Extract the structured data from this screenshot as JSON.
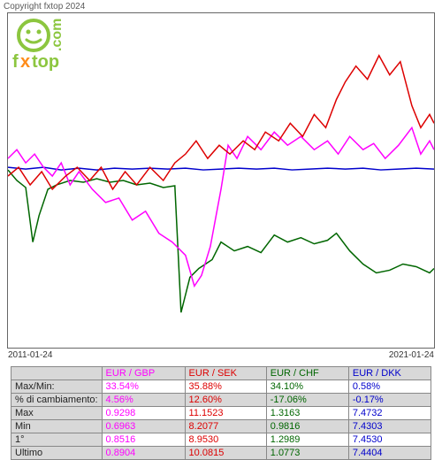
{
  "copyright": "Copyright fxtop 2024",
  "logo": {
    "text_top": "fxtop",
    "text_side": ".com",
    "smiley_color": "#8cc63f",
    "x_color": "#ff8c1a"
  },
  "chart": {
    "type": "line",
    "background_color": "#ffffff",
    "border_color": "#666666",
    "x_start_label": "2011-01-24",
    "x_end_label": "2021-01-24",
    "series": [
      {
        "name": "EUR/GBP",
        "color": "#ff00ff"
      },
      {
        "name": "EUR/SEK",
        "color": "#dd0000"
      },
      {
        "name": "EUR/CHF",
        "color": "#006600"
      },
      {
        "name": "EUR/DKK",
        "color": "#0000cc"
      }
    ]
  },
  "table": {
    "columns": [
      {
        "label": "EUR / GBP",
        "color": "#ff00ff"
      },
      {
        "label": "EUR / SEK",
        "color": "#dd0000"
      },
      {
        "label": "EUR / CHF",
        "color": "#006600"
      },
      {
        "label": "EUR / DKK",
        "color": "#0000cc"
      }
    ],
    "rows": [
      {
        "header": "Max/Min:",
        "cells": [
          "33.54%",
          "35.88%",
          "34.10%",
          "0.58%"
        ],
        "bg": "white"
      },
      {
        "header": "% di cambiamento:",
        "cells": [
          "4.56%",
          "12.60%",
          "-17.06%",
          "-0.17%"
        ],
        "bg": "gray"
      },
      {
        "header": "Max",
        "cells": [
          "0.9298",
          "11.1523",
          "1.3163",
          "7.4732"
        ],
        "bg": "white"
      },
      {
        "header": "Min",
        "cells": [
          "0.6963",
          "8.2077",
          "0.9816",
          "7.4303"
        ],
        "bg": "gray"
      },
      {
        "header": "1°",
        "cells": [
          "0.8516",
          "8.9530",
          "1.2989",
          "7.4530"
        ],
        "bg": "white"
      },
      {
        "header": "Ultimo",
        "cells": [
          "0.8904",
          "10.0815",
          "1.0773",
          "7.4404"
        ],
        "bg": "gray"
      }
    ]
  }
}
